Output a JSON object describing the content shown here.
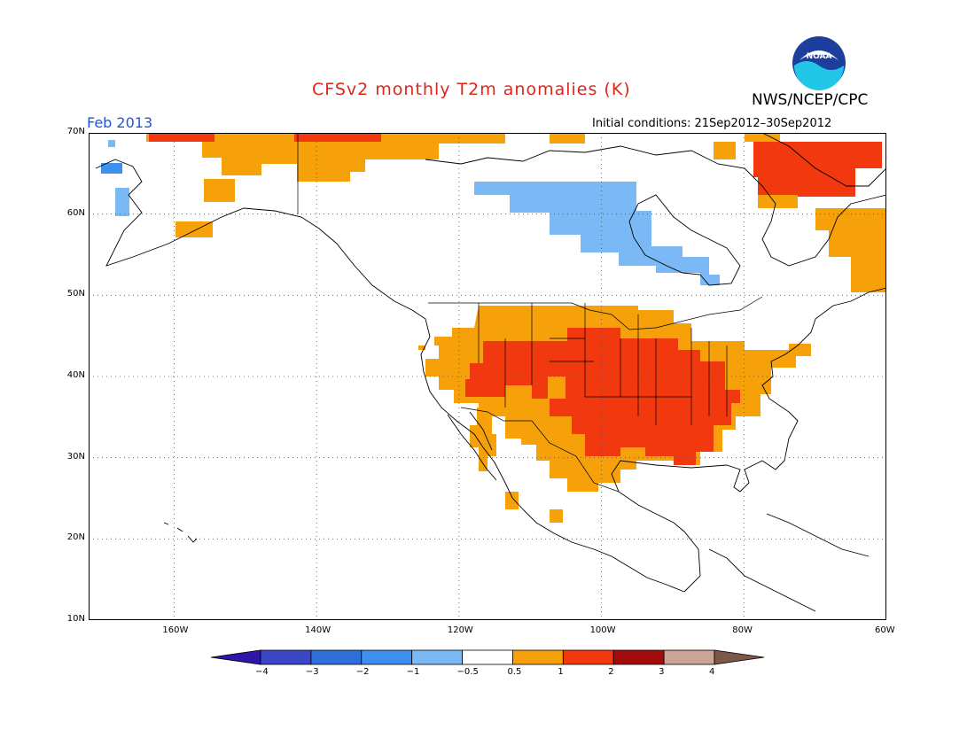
{
  "header": {
    "title": "CFSv2 monthly T2m anomalies (K)",
    "agency": "NWS/NCEP/CPC",
    "month": "Feb 2013",
    "initial_conditions": "Initial conditions: 21Sep2012–30Sep2012",
    "logo_text": "NOAA"
  },
  "map": {
    "lon_range": [
      -172,
      -60
    ],
    "lat_range": [
      10,
      70
    ],
    "lat_ticks": [
      "70N",
      "60N",
      "50N",
      "40N",
      "30N",
      "20N",
      "10N"
    ],
    "lon_ticks": [
      "160W",
      "140W",
      "120W",
      "100W",
      "80W",
      "60W"
    ],
    "grid": "dotted"
  },
  "colorbar": {
    "labels": [
      "−4",
      "−3",
      "−2",
      "−1",
      "−0.5",
      "0.5",
      "1",
      "2",
      "3",
      "4"
    ],
    "colors": [
      "#2d16a8",
      "#3b45c8",
      "#2f6fd8",
      "#3f8fee",
      "#7ab8f6",
      "#ffffff",
      "#f6a10a",
      "#f2380e",
      "#a40c0c",
      "#caa495",
      "#7d5848"
    ]
  },
  "colors": {
    "title": "#e0261b",
    "month_label": "#2255dd",
    "anom_light_blue": "#7ab8f6",
    "anom_mid_blue": "#3f8fee",
    "anom_orange": "#f6a10a",
    "anom_red": "#f2380e"
  }
}
